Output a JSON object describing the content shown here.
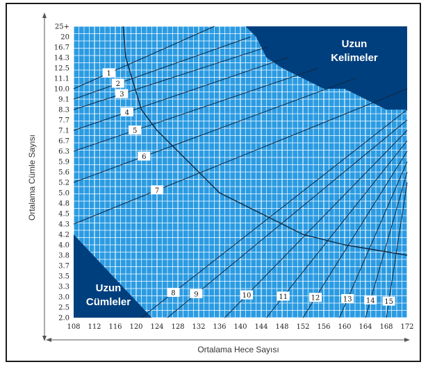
{
  "chart_data": {
    "type": "line",
    "title": "",
    "xlabel": "Ortalama Hece Sayısı",
    "ylabel": "Ortalama Cümle Sayısı",
    "x_ticks": [
      "108",
      "112",
      "116",
      "120",
      "124",
      "128",
      "132",
      "136",
      "140",
      "144",
      "148",
      "152",
      "156",
      "160",
      "164",
      "168",
      "172"
    ],
    "y_ticks": [
      "2.0",
      "2.5",
      "3.0",
      "3.3",
      "3.5",
      "3.7",
      "3.8",
      "4.0",
      "4.2",
      "4.3",
      "4.5",
      "4.8",
      "5.0",
      "5.2",
      "5.6",
      "5.9",
      "6.3",
      "6.7",
      "7.1",
      "7.7",
      "8.3",
      "9.1",
      "10.0",
      "11.1",
      "12.5",
      "14.3",
      "16.7",
      "20",
      "25+"
    ],
    "xlim": [
      108,
      172
    ],
    "grid": true,
    "grade_lines": [
      {
        "label": "1",
        "p1": [
          108,
          10.0
        ],
        "p2": [
          135,
          25
        ]
      },
      {
        "label": "2",
        "p1": [
          108,
          9.1
        ],
        "p2": [
          142,
          20
        ]
      },
      {
        "label": "3",
        "p1": [
          108,
          8.3
        ],
        "p2": [
          145,
          16.7
        ]
      },
      {
        "label": "4",
        "p1": [
          108,
          7.1
        ],
        "p2": [
          149,
          14.3
        ]
      },
      {
        "label": "5",
        "p1": [
          108,
          6.3
        ],
        "p2": [
          155,
          12.5
        ]
      },
      {
        "label": "6",
        "p1": [
          108,
          5.2
        ],
        "p2": [
          162,
          11.1
        ]
      },
      {
        "label": "7",
        "p1": [
          108,
          4.3
        ],
        "p2": [
          172,
          10.0
        ]
      },
      {
        "label": "8",
        "p1": [
          121,
          2.0
        ],
        "p2": [
          172,
          8.3
        ]
      },
      {
        "label": "9",
        "p1": [
          126,
          2.0
        ],
        "p2": [
          172,
          7.7
        ]
      },
      {
        "label": "10",
        "p1": [
          137,
          2.0
        ],
        "p2": [
          172,
          7.1
        ]
      },
      {
        "label": "11",
        "p1": [
          145,
          2.0
        ],
        "p2": [
          172,
          6.7
        ]
      },
      {
        "label": "12",
        "p1": [
          152,
          2.0
        ],
        "p2": [
          172,
          6.3
        ]
      },
      {
        "label": "13",
        "p1": [
          159,
          2.0
        ],
        "p2": [
          172,
          5.9
        ]
      },
      {
        "label": "14",
        "p1": [
          164,
          2.0
        ],
        "p2": [
          172,
          5.6
        ]
      },
      {
        "label": "15",
        "p1": [
          168,
          2.0
        ],
        "p2": [
          172,
          5.2
        ]
      }
    ],
    "boundary_curve": [
      [
        117.5,
        25
      ],
      [
        118,
        14.3
      ],
      [
        121,
        8.3
      ],
      [
        124,
        7.1
      ],
      [
        130,
        5.9
      ],
      [
        136,
        5.0
      ],
      [
        144,
        4.5
      ],
      [
        152,
        4.2
      ],
      [
        160,
        4.0
      ],
      [
        172,
        3.8
      ]
    ],
    "regions": [
      {
        "label_line1": "Uzun",
        "label_line2": "Kelimeler",
        "color": "#003f7d",
        "outline": [
          [
            141,
            25
          ],
          [
            172,
            25
          ],
          [
            172,
            8.3
          ],
          [
            168,
            8.3
          ],
          [
            164,
            9.1
          ],
          [
            160,
            10.0
          ],
          [
            156,
            10.0
          ],
          [
            152,
            11.1
          ],
          [
            148,
            12.5
          ],
          [
            145,
            14.3
          ],
          [
            143,
            20
          ]
        ]
      },
      {
        "label_line1": "Uzun",
        "label_line2": "Cümleler",
        "color": "#003f7d",
        "outline": [
          [
            108,
            4.2
          ],
          [
            123,
            2.0
          ],
          [
            108,
            2.0
          ]
        ]
      }
    ],
    "grid_color": "#ffffff",
    "plot_bg": "#2b9be2",
    "line_color": "#0f2740"
  }
}
